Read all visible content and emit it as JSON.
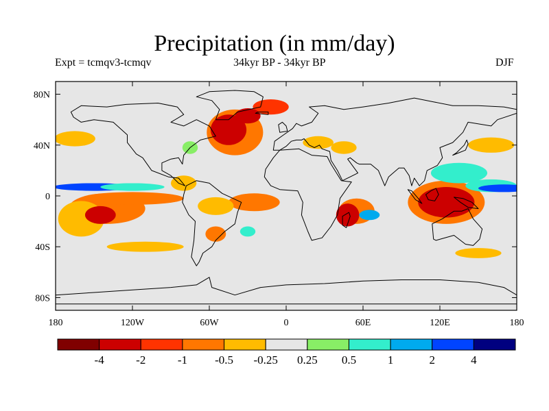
{
  "title": "Precipitation (in mm/day)",
  "subtitle_left": "Expt = tcmqv3-tcmqv",
  "subtitle_center": "34kyr BP - 34kyr BP",
  "subtitle_right": "DJF",
  "map": {
    "lon_range": [
      -180,
      180
    ],
    "lat_range": [
      -90,
      90
    ],
    "background_color": "#e6e6e6",
    "x_ticks": [
      {
        "lon": -180,
        "label": "180"
      },
      {
        "lon": -120,
        "label": "120W"
      },
      {
        "lon": -60,
        "label": "60W"
      },
      {
        "lon": 0,
        "label": "0"
      },
      {
        "lon": 60,
        "label": "60E"
      },
      {
        "lon": 120,
        "label": "120E"
      },
      {
        "lon": 180,
        "label": "180"
      }
    ],
    "y_ticks": [
      {
        "lat": 80,
        "label": "80N"
      },
      {
        "lat": 40,
        "label": "40N"
      },
      {
        "lat": 0,
        "label": "0"
      },
      {
        "lat": -40,
        "label": "40S"
      },
      {
        "lat": -80,
        "label": "80S"
      }
    ]
  },
  "colorbar": {
    "colors": [
      "#800000",
      "#cc0000",
      "#ff3300",
      "#ff7700",
      "#ffbb00",
      "#e6e6e6",
      "#88ee66",
      "#33eecc",
      "#00aaee",
      "#0044ff",
      "#000080"
    ],
    "labels": [
      "-4",
      "-2",
      "-1",
      "-0.5",
      "-0.25",
      "0.25",
      "0.5",
      "1",
      "2",
      "4"
    ]
  },
  "field_regions": [
    {
      "name": "n-atlantic-dry",
      "lon": -45,
      "lat": 52,
      "rx": 14,
      "ry": 12,
      "level": 1
    },
    {
      "name": "n-atlantic-dry-2",
      "lon": -30,
      "lat": 63,
      "rx": 10,
      "ry": 6,
      "level": 1
    },
    {
      "name": "n-atlantic-moderate",
      "lon": -40,
      "lat": 50,
      "rx": 22,
      "ry": 18,
      "level": 3
    },
    {
      "name": "greenland-sea-dry",
      "lon": -12,
      "lat": 70,
      "rx": 14,
      "ry": 6,
      "level": 2
    },
    {
      "name": "e-pacific-itcz-wet",
      "lon": -150,
      "lat": 7,
      "rx": 32,
      "ry": 3,
      "level": 9
    },
    {
      "name": "e-pacific-itcz-wet-2",
      "lon": -120,
      "lat": 7,
      "rx": 25,
      "ry": 3,
      "level": 7
    },
    {
      "name": "s-pacific-dry",
      "lon": -145,
      "lat": -15,
      "rx": 12,
      "ry": 7,
      "level": 1
    },
    {
      "name": "s-pacific-moderate",
      "lon": -140,
      "lat": -10,
      "rx": 30,
      "ry": 12,
      "level": 3
    },
    {
      "name": "e-pacific-band",
      "lon": -120,
      "lat": -2,
      "rx": 40,
      "ry": 5,
      "level": 3
    },
    {
      "name": "s-pacific-light",
      "lon": -160,
      "lat": -18,
      "rx": 18,
      "ry": 14,
      "level": 4
    },
    {
      "name": "amazon-light",
      "lon": -55,
      "lat": -8,
      "rx": 14,
      "ry": 7,
      "level": 4
    },
    {
      "name": "s-atlantic-band",
      "lon": -25,
      "lat": -5,
      "rx": 20,
      "ry": 7,
      "level": 3
    },
    {
      "name": "s-america-sw",
      "lon": -55,
      "lat": -30,
      "rx": 8,
      "ry": 6,
      "level": 3
    },
    {
      "name": "s-atlantic-wet",
      "lon": -30,
      "lat": -28,
      "rx": 6,
      "ry": 4,
      "level": 7
    },
    {
      "name": "africa-south-dry",
      "lon": 48,
      "lat": -15,
      "rx": 9,
      "ry": 9,
      "level": 1
    },
    {
      "name": "indian-ocean-moderate",
      "lon": 55,
      "lat": -12,
      "rx": 14,
      "ry": 10,
      "level": 3
    },
    {
      "name": "indian-ocean-wet",
      "lon": 65,
      "lat": -15,
      "rx": 8,
      "ry": 4,
      "level": 8
    },
    {
      "name": "warm-pool-dry",
      "lon": 125,
      "lat": -5,
      "rx": 22,
      "ry": 12,
      "level": 1
    },
    {
      "name": "warm-pool-moderate",
      "lon": 125,
      "lat": -5,
      "rx": 30,
      "ry": 17,
      "level": 3
    },
    {
      "name": "nw-pacific-wet",
      "lon": 135,
      "lat": 18,
      "rx": 22,
      "ry": 8,
      "level": 7
    },
    {
      "name": "w-pacific-itcz-wet",
      "lon": 170,
      "lat": 6,
      "rx": 20,
      "ry": 3,
      "level": 9
    },
    {
      "name": "w-pacific-itcz-wet-2",
      "lon": 160,
      "lat": 8,
      "rx": 20,
      "ry": 5,
      "level": 7
    },
    {
      "name": "kuroshio-light",
      "lon": 160,
      "lat": 40,
      "rx": 18,
      "ry": 6,
      "level": 4
    },
    {
      "name": "europe-light",
      "lon": 25,
      "lat": 42,
      "rx": 12,
      "ry": 5,
      "level": 4
    },
    {
      "name": "asia-light",
      "lon": 45,
      "lat": 38,
      "rx": 10,
      "ry": 5,
      "level": 4
    },
    {
      "name": "s-ocean-band",
      "lon": -110,
      "lat": -40,
      "rx": 30,
      "ry": 4,
      "level": 4
    },
    {
      "name": "s-ocean-band-2",
      "lon": 150,
      "lat": -45,
      "rx": 18,
      "ry": 4,
      "level": 4
    },
    {
      "name": "e-n-america-wet",
      "lon": -75,
      "lat": 38,
      "rx": 6,
      "ry": 5,
      "level": 6
    },
    {
      "name": "n-pacific-light",
      "lon": -165,
      "lat": 45,
      "rx": 16,
      "ry": 6,
      "level": 4
    },
    {
      "name": "caribbean-light",
      "lon": -80,
      "lat": 10,
      "rx": 10,
      "ry": 6,
      "level": 4
    }
  ],
  "land_shapes": [
    {
      "name": "north-america",
      "points": [
        [
          -168,
          66
        ],
        [
          -160,
          71
        ],
        [
          -140,
          70
        ],
        [
          -125,
          72
        ],
        [
          -100,
          73
        ],
        [
          -85,
          70
        ],
        [
          -80,
          64
        ],
        [
          -90,
          58
        ],
        [
          -80,
          55
        ],
        [
          -70,
          60
        ],
        [
          -60,
          55
        ],
        [
          -55,
          47
        ],
        [
          -67,
          44
        ],
        [
          -75,
          38
        ],
        [
          -80,
          32
        ],
        [
          -81,
          25
        ],
        [
          -84,
          30
        ],
        [
          -90,
          29
        ],
        [
          -97,
          26
        ],
        [
          -97,
          20
        ],
        [
          -90,
          16
        ],
        [
          -84,
          10
        ],
        [
          -79,
          8
        ],
        [
          -84,
          14
        ],
        [
          -92,
          15
        ],
        [
          -105,
          20
        ],
        [
          -112,
          30
        ],
        [
          -117,
          33
        ],
        [
          -124,
          42
        ],
        [
          -124,
          48
        ],
        [
          -135,
          58
        ],
        [
          -150,
          60
        ],
        [
          -160,
          58
        ],
        [
          -166,
          62
        ]
      ]
    },
    {
      "name": "greenland",
      "points": [
        [
          -55,
          60
        ],
        [
          -45,
          60
        ],
        [
          -38,
          66
        ],
        [
          -20,
          70
        ],
        [
          -18,
          78
        ],
        [
          -25,
          82
        ],
        [
          -40,
          83
        ],
        [
          -60,
          82
        ],
        [
          -70,
          78
        ],
        [
          -58,
          75
        ],
        [
          -52,
          68
        ]
      ]
    },
    {
      "name": "south-america",
      "points": [
        [
          -78,
          8
        ],
        [
          -70,
          12
        ],
        [
          -60,
          10
        ],
        [
          -50,
          2
        ],
        [
          -35,
          -5
        ],
        [
          -38,
          -13
        ],
        [
          -40,
          -22
        ],
        [
          -48,
          -28
        ],
        [
          -55,
          -35
        ],
        [
          -58,
          -40
        ],
        [
          -65,
          -45
        ],
        [
          -68,
          -52
        ],
        [
          -70,
          -55
        ],
        [
          -74,
          -48
        ],
        [
          -72,
          -35
        ],
        [
          -71,
          -20
        ],
        [
          -76,
          -15
        ],
        [
          -81,
          -5
        ],
        [
          -80,
          1
        ]
      ]
    },
    {
      "name": "africa",
      "points": [
        [
          -17,
          15
        ],
        [
          -16,
          21
        ],
        [
          -10,
          30
        ],
        [
          -5,
          36
        ],
        [
          10,
          37
        ],
        [
          20,
          32
        ],
        [
          32,
          31
        ],
        [
          35,
          25
        ],
        [
          43,
          12
        ],
        [
          51,
          11
        ],
        [
          42,
          -2
        ],
        [
          40,
          -15
        ],
        [
          35,
          -24
        ],
        [
          28,
          -33
        ],
        [
          20,
          -35
        ],
        [
          17,
          -28
        ],
        [
          12,
          -15
        ],
        [
          13,
          -5
        ],
        [
          9,
          4
        ],
        [
          -5,
          5
        ],
        [
          -12,
          8
        ]
      ]
    },
    {
      "name": "eurasia",
      "points": [
        [
          -10,
          36
        ],
        [
          -9,
          43
        ],
        [
          -2,
          48
        ],
        [
          5,
          53
        ],
        [
          8,
          57
        ],
        [
          12,
          55
        ],
        [
          20,
          58
        ],
        [
          25,
          65
        ],
        [
          18,
          70
        ],
        [
          30,
          71
        ],
        [
          45,
          68
        ],
        [
          60,
          70
        ],
        [
          80,
          73
        ],
        [
          100,
          77
        ],
        [
          115,
          74
        ],
        [
          130,
          71
        ],
        [
          150,
          71
        ],
        [
          170,
          70
        ],
        [
          180,
          68
        ],
        [
          180,
          65
        ],
        [
          165,
          60
        ],
        [
          160,
          55
        ],
        [
          142,
          58
        ],
        [
          138,
          50
        ],
        [
          130,
          42
        ],
        [
          120,
          38
        ],
        [
          122,
          30
        ],
        [
          118,
          24
        ],
        [
          110,
          20
        ],
        [
          108,
          12
        ],
        [
          104,
          8
        ],
        [
          100,
          14
        ],
        [
          98,
          8
        ],
        [
          96,
          16
        ],
        [
          92,
          22
        ],
        [
          88,
          22
        ],
        [
          80,
          15
        ],
        [
          77,
          8
        ],
        [
          72,
          20
        ],
        [
          66,
          25
        ],
        [
          57,
          25
        ],
        [
          55,
          26
        ],
        [
          50,
          30
        ],
        [
          48,
          29
        ],
        [
          56,
          18
        ],
        [
          44,
          12
        ],
        [
          40,
          20
        ],
        [
          35,
          28
        ],
        [
          34,
          35
        ],
        [
          28,
          37
        ],
        [
          26,
          40
        ],
        [
          22,
          38
        ],
        [
          18,
          40
        ],
        [
          14,
          45
        ],
        [
          12,
          44
        ],
        [
          8,
          44
        ],
        [
          4,
          43
        ],
        [
          0,
          39
        ],
        [
          -5,
          36
        ]
      ]
    },
    {
      "name": "australia",
      "points": [
        [
          114,
          -22
        ],
        [
          122,
          -18
        ],
        [
          131,
          -12
        ],
        [
          137,
          -12
        ],
        [
          142,
          -10
        ],
        [
          146,
          -18
        ],
        [
          153,
          -26
        ],
        [
          151,
          -34
        ],
        [
          146,
          -39
        ],
        [
          140,
          -38
        ],
        [
          131,
          -31
        ],
        [
          117,
          -35
        ],
        [
          115,
          -34
        ]
      ]
    },
    {
      "name": "antarctica",
      "points": [
        [
          -180,
          -85
        ],
        [
          -180,
          -78
        ],
        [
          -150,
          -76
        ],
        [
          -120,
          -74
        ],
        [
          -90,
          -72
        ],
        [
          -70,
          -70
        ],
        [
          -60,
          -64
        ],
        [
          -58,
          -72
        ],
        [
          -40,
          -78
        ],
        [
          -20,
          -72
        ],
        [
          0,
          -70
        ],
        [
          30,
          -69
        ],
        [
          60,
          -67
        ],
        [
          90,
          -66
        ],
        [
          120,
          -66
        ],
        [
          150,
          -68
        ],
        [
          170,
          -72
        ],
        [
          180,
          -78
        ],
        [
          180,
          -85
        ]
      ]
    },
    {
      "name": "borneo",
      "points": [
        [
          109,
          1
        ],
        [
          113,
          4
        ],
        [
          117,
          6
        ],
        [
          119,
          1
        ],
        [
          116,
          -4
        ],
        [
          111,
          -3
        ]
      ]
    },
    {
      "name": "sumatra",
      "points": [
        [
          95,
          5
        ],
        [
          98,
          4
        ],
        [
          104,
          -3
        ],
        [
          106,
          -6
        ],
        [
          101,
          -3
        ]
      ]
    },
    {
      "name": "new-guinea",
      "points": [
        [
          131,
          -1
        ],
        [
          138,
          -2
        ],
        [
          145,
          -5
        ],
        [
          150,
          -10
        ],
        [
          142,
          -9
        ],
        [
          136,
          -5
        ]
      ]
    },
    {
      "name": "madagascar",
      "points": [
        [
          44,
          -16
        ],
        [
          49,
          -13
        ],
        [
          50,
          -16
        ],
        [
          47,
          -25
        ],
        [
          44,
          -23
        ]
      ]
    },
    {
      "name": "japan",
      "points": [
        [
          130,
          32
        ],
        [
          135,
          34
        ],
        [
          140,
          36
        ],
        [
          142,
          41
        ],
        [
          141,
          44
        ],
        [
          139,
          40
        ],
        [
          133,
          34
        ]
      ]
    },
    {
      "name": "uk",
      "points": [
        [
          -5,
          50
        ],
        [
          1,
          51
        ],
        [
          0,
          55
        ],
        [
          -3,
          58
        ],
        [
          -6,
          56
        ]
      ]
    },
    {
      "name": "iceland",
      "points": [
        [
          -24,
          65
        ],
        [
          -14,
          64
        ],
        [
          -14,
          66
        ],
        [
          -22,
          66
        ]
      ]
    }
  ]
}
